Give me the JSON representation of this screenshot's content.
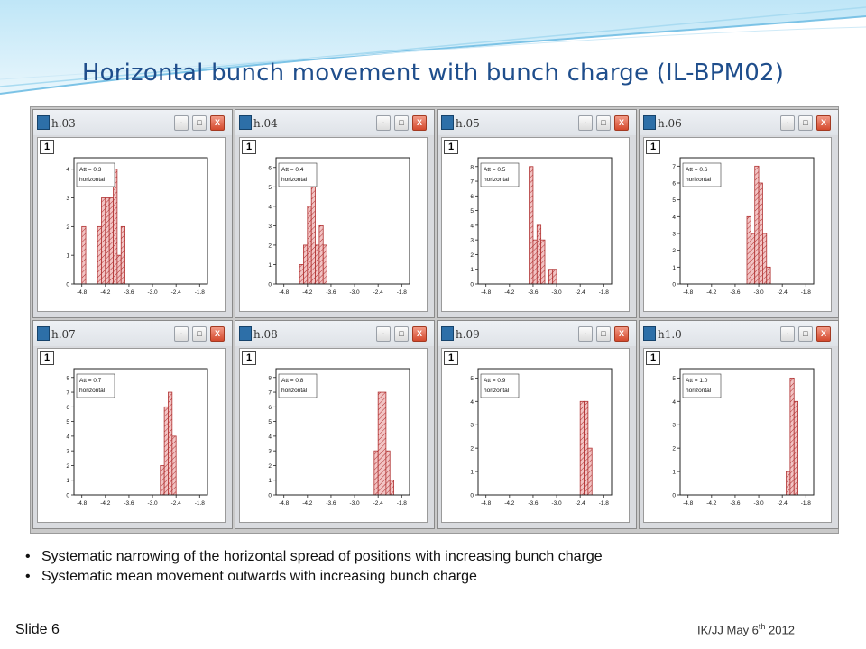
{
  "title": "Horizontal bunch movement with bunch charge (IL-BPM02)",
  "colors": {
    "title": "#1f4e8c",
    "bar_fill": "#f2c4c4",
    "bar_stroke": "#b03030",
    "banner": "#9fd3ef"
  },
  "window_buttons": {
    "minimize": "-",
    "maximize": "□",
    "close": "X"
  },
  "chart_data": [
    {
      "type": "bar",
      "window_title": "h.03",
      "layer": "1",
      "legend": [
        "Att = 0.3",
        "horizontal"
      ],
      "bin_start": -4.9,
      "bin_width": 0.1,
      "values": [
        0,
        2,
        0,
        0,
        0,
        2,
        3,
        3,
        3,
        4,
        1,
        2,
        0,
        0,
        0,
        0,
        0,
        0,
        0
      ],
      "xticks": [
        "-4.8",
        "-4.2",
        "-3.6",
        "-3.0",
        "-2.4",
        "-1.8"
      ],
      "xlim": [
        -5.0,
        -1.6
      ],
      "ylim": [
        0,
        4.4
      ],
      "yticks": [
        0,
        1,
        2,
        3,
        4
      ]
    },
    {
      "type": "bar",
      "window_title": "h.04",
      "layer": "1",
      "legend": [
        "Att = 0.4",
        "horizontal"
      ],
      "bin_start": -4.4,
      "bin_width": 0.1,
      "values": [
        1,
        2,
        4,
        6,
        2,
        3,
        2,
        0,
        0,
        0,
        0,
        0,
        0,
        0
      ],
      "xticks": [
        "-4.8",
        "-4.2",
        "-3.6",
        "-3.0",
        "-2.4",
        "-1.8"
      ],
      "xlim": [
        -5.0,
        -1.6
      ],
      "ylim": [
        0,
        6.5
      ],
      "yticks": [
        0,
        1,
        2,
        3,
        4,
        5,
        6
      ]
    },
    {
      "type": "bar",
      "window_title": "h.05",
      "layer": "1",
      "legend": [
        "Att = 0.5",
        "horizontal"
      ],
      "bin_start": -3.7,
      "bin_width": 0.1,
      "values": [
        8,
        3,
        4,
        3,
        0,
        1,
        1,
        0,
        0,
        0
      ],
      "xticks": [
        "-4.8",
        "-4.2",
        "-3.6",
        "-3.0",
        "-2.4",
        "-1.8"
      ],
      "xlim": [
        -5.0,
        -1.6
      ],
      "ylim": [
        0,
        8.6
      ],
      "yticks": [
        0,
        1,
        2,
        3,
        4,
        5,
        6,
        7,
        8
      ]
    },
    {
      "type": "bar",
      "window_title": "h.06",
      "layer": "1",
      "legend": [
        "Att = 0.6",
        "horizontal"
      ],
      "bin_start": -3.3,
      "bin_width": 0.1,
      "values": [
        4,
        3,
        7,
        6,
        3,
        1,
        0,
        0
      ],
      "xticks": [
        "-4.8",
        "-4.2",
        "-3.6",
        "-3.0",
        "-2.4",
        "-1.8"
      ],
      "xlim": [
        -5.0,
        -1.6
      ],
      "ylim": [
        0,
        7.5
      ],
      "yticks": [
        0,
        1,
        2,
        3,
        4,
        5,
        6,
        7
      ]
    },
    {
      "type": "bar",
      "window_title": "h.07",
      "layer": "1",
      "legend": [
        "Att = 0.7",
        "horizontal"
      ],
      "bin_start": -2.8,
      "bin_width": 0.1,
      "values": [
        2,
        6,
        7,
        4,
        0,
        0
      ],
      "xticks": [
        "-4.8",
        "-4.2",
        "-3.6",
        "-3.0",
        "-2.4",
        "-1.8"
      ],
      "xlim": [
        -5.0,
        -1.6
      ],
      "ylim": [
        0,
        8.6
      ],
      "yticks": [
        0,
        1,
        2,
        3,
        4,
        5,
        6,
        7,
        8
      ]
    },
    {
      "type": "bar",
      "window_title": "h.08",
      "layer": "1",
      "legend": [
        "Att = 0.8",
        "horizontal"
      ],
      "bin_start": -2.5,
      "bin_width": 0.1,
      "values": [
        3,
        7,
        7,
        3,
        1
      ],
      "xticks": [
        "-4.8",
        "-4.2",
        "-3.6",
        "-3.0",
        "-2.4",
        "-1.8"
      ],
      "xlim": [
        -5.0,
        -1.6
      ],
      "ylim": [
        0,
        8.6
      ],
      "yticks": [
        0,
        1,
        2,
        3,
        4,
        5,
        6,
        7,
        8
      ]
    },
    {
      "type": "bar",
      "window_title": "h.09",
      "layer": "1",
      "legend": [
        "Att = 0.9",
        "horizontal"
      ],
      "bin_start": -2.4,
      "bin_width": 0.1,
      "values": [
        4,
        4,
        2
      ],
      "xticks": [
        "-4.8",
        "-4.2",
        "-3.6",
        "-3.0",
        "-2.4",
        "-1.8"
      ],
      "xlim": [
        -5.0,
        -1.6
      ],
      "ylim": [
        0,
        5.4
      ],
      "yticks": [
        0,
        1,
        2,
        3,
        4,
        5
      ]
    },
    {
      "type": "bar",
      "window_title": "h1.0",
      "layer": "1",
      "legend": [
        "Att = 1.0",
        "horizontal"
      ],
      "bin_start": -2.3,
      "bin_width": 0.1,
      "values": [
        1,
        5,
        4
      ],
      "xticks": [
        "-4.8",
        "-4.2",
        "-3.6",
        "-3.0",
        "-2.4",
        "-1.8"
      ],
      "xlim": [
        -5.0,
        -1.6
      ],
      "ylim": [
        0,
        5.4
      ],
      "yticks": [
        0,
        1,
        2,
        3,
        4,
        5
      ]
    }
  ],
  "bullets": [
    "Systematic narrowing of the horizontal spread of positions with increasing bunch charge",
    "Systematic mean movement outwards with increasing bunch charge"
  ],
  "bullet_glyph": "•",
  "slide_label": "Slide 6",
  "footer": {
    "text": "IK/JJ May 6",
    "sup": "th",
    "year": " 2012"
  }
}
